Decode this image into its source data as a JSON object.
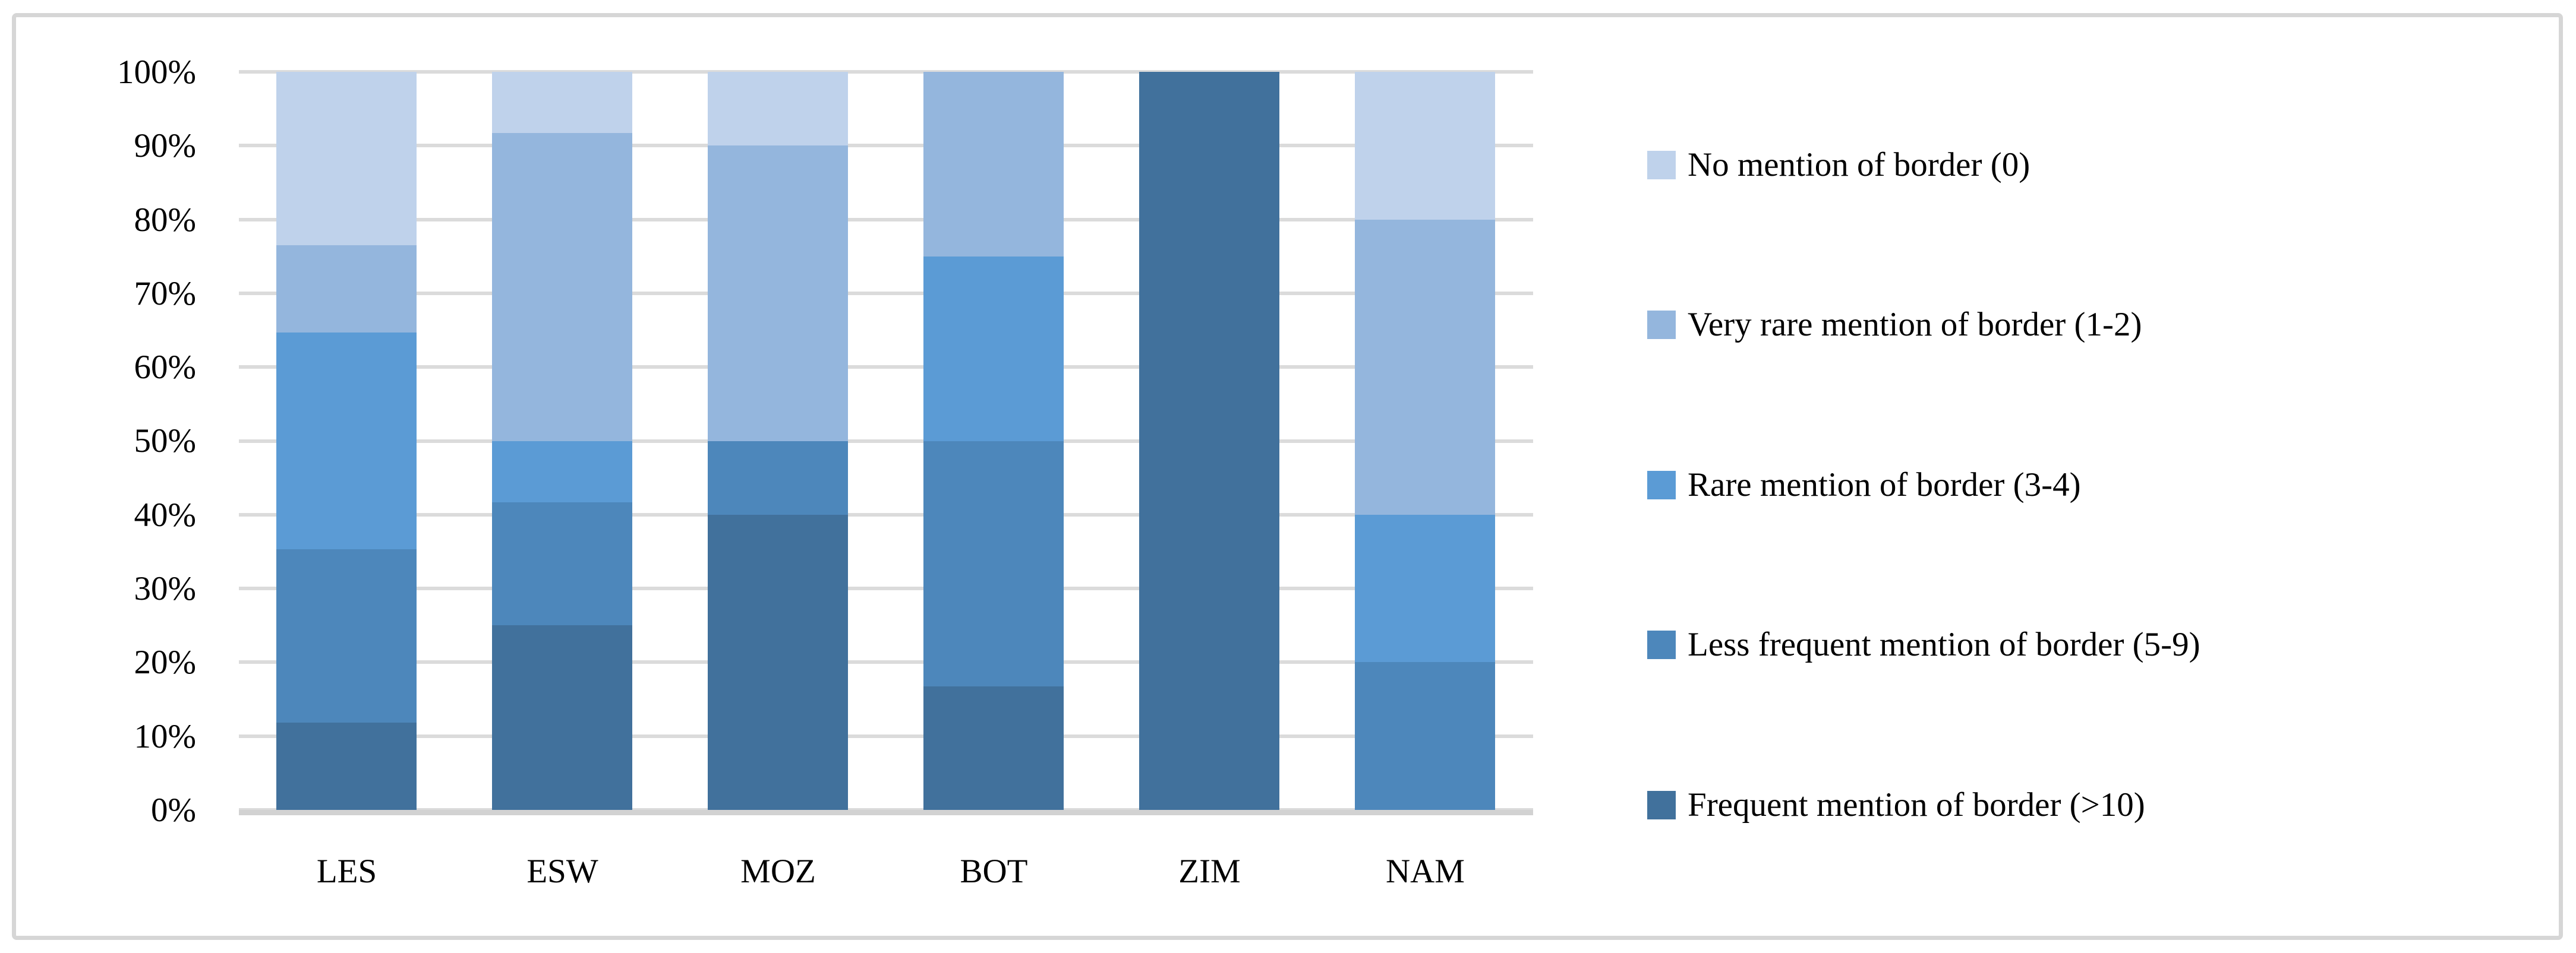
{
  "figure": {
    "background_color": "#ffffff",
    "frame_color": "#d6d6d6",
    "gridline_color": "#dbdbdb",
    "axis_line_color": "#d2d2d2",
    "text_color": "#000000"
  },
  "chart_data": {
    "type": "bar",
    "subtype": "stacked-100-percent-column",
    "title": "",
    "xlabel": "",
    "ylabel": "",
    "grid": true,
    "legend_position": "right",
    "categories": [
      "LES",
      "ESW",
      "MOZ",
      "BOT",
      "ZIM",
      "NAM"
    ],
    "y_axis": {
      "min": 0,
      "max": 100,
      "unit": "percent",
      "ticks": [
        "100%",
        "90%",
        "80%",
        "70%",
        "60%",
        "50%",
        "40%",
        "30%",
        "20%",
        "10%",
        "0%"
      ]
    },
    "series": [
      {
        "name": "Frequent mention of border (>10)",
        "color": "#41719c",
        "values": [
          11.8,
          25,
          40,
          16.7,
          100,
          0
        ]
      },
      {
        "name": "Less frequent mention of border (5-9)",
        "color": "#4d87bb",
        "values": [
          23.5,
          16.7,
          10,
          33.3,
          0,
          20
        ]
      },
      {
        "name": "Rare mention of border (3-4)",
        "color": "#5b9bd5",
        "values": [
          29.4,
          8.3,
          0,
          25,
          0,
          20
        ]
      },
      {
        "name": "Very rare mention of border (1-2)",
        "color": "#94b6dd",
        "values": [
          11.8,
          41.7,
          40,
          25,
          0,
          40
        ]
      },
      {
        "name": "No mention of border (0)",
        "color": "#bfd2eb",
        "values": [
          23.5,
          8.3,
          10,
          0,
          0,
          20
        ]
      }
    ],
    "legend": {
      "items": [
        {
          "label": "No mention of border (0)",
          "color": "#bfd2eb"
        },
        {
          "label": "Very rare mention of border (1-2)",
          "color": "#94b6dd"
        },
        {
          "label": "Rare mention of border (3-4)",
          "color": "#5b9bd5"
        },
        {
          "label": "Less frequent mention of border (5-9)",
          "color": "#4d87bb"
        },
        {
          "label": "Frequent mention of border (>10)",
          "color": "#41719c"
        }
      ]
    }
  }
}
